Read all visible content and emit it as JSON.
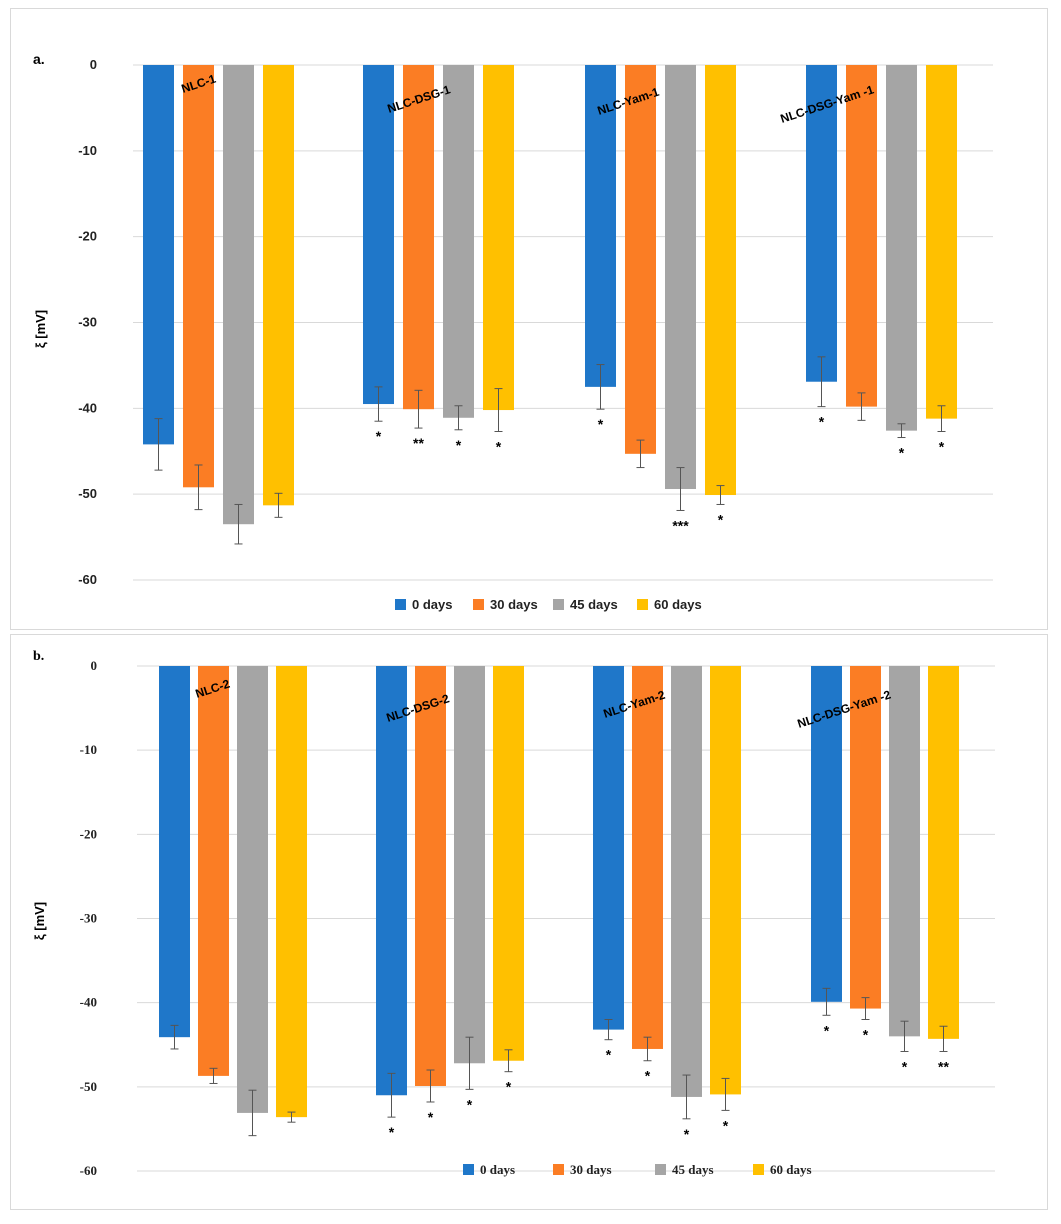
{
  "colors": {
    "0 days": "#1f77c9",
    "30 days": "#fb7d24",
    "45 days": "#a5a5a5",
    "60 days": "#ffc000",
    "grid": "#d9d9d9",
    "errorbar": "#555555"
  },
  "chart_data": [
    {
      "panel_label": "a.",
      "type": "bar",
      "ylabel": "ξ [mV]",
      "ylim": [
        -60,
        0
      ],
      "yticks": [
        0,
        -10,
        -20,
        -30,
        -40,
        -50,
        -60
      ],
      "grid": true,
      "legend_position": "bottom",
      "categories": [
        "NLC-1",
        "NLC-DSG-1",
        "NLC-Yam-1",
        "NLC-DSG-Yam -1"
      ],
      "series": [
        {
          "name": "0 days",
          "values": [
            -44.2,
            -39.5,
            -37.5,
            -36.9
          ],
          "errors": [
            3.0,
            2.0,
            2.6,
            2.9
          ],
          "significance": [
            "",
            "*",
            "*",
            "*"
          ]
        },
        {
          "name": "30 days",
          "values": [
            -49.2,
            -40.1,
            -45.3,
            -39.8
          ],
          "errors": [
            2.6,
            2.2,
            1.6,
            1.6
          ],
          "significance": [
            "",
            "**",
            "",
            ""
          ]
        },
        {
          "name": "45 days",
          "values": [
            -53.5,
            -41.1,
            -49.4,
            -42.6
          ],
          "errors": [
            2.3,
            1.4,
            2.5,
            0.8
          ],
          "significance": [
            "",
            "*",
            "***",
            "*"
          ]
        },
        {
          "name": "60 days",
          "values": [
            -51.3,
            -40.2,
            -50.1,
            -41.2
          ],
          "errors": [
            1.4,
            2.5,
            1.1,
            1.5
          ],
          "significance": [
            "",
            "*",
            "*",
            "*"
          ]
        }
      ]
    },
    {
      "panel_label": "b.",
      "type": "bar",
      "ylabel": "ξ [mV]",
      "ylim": [
        -60,
        0
      ],
      "yticks": [
        0,
        -10,
        -20,
        -30,
        -40,
        -50,
        -60
      ],
      "grid": true,
      "legend_position": "bottom",
      "categories": [
        "NLC-2",
        "NLC-DSG-2",
        "NLC-Yam-2",
        "NLC-DSG-Yam -2"
      ],
      "series": [
        {
          "name": "0 days",
          "values": [
            -44.1,
            -51.0,
            -43.2,
            -39.9
          ],
          "errors": [
            1.4,
            2.6,
            1.2,
            1.6
          ],
          "significance": [
            "",
            "*",
            "*",
            "*"
          ]
        },
        {
          "name": "30 days",
          "values": [
            -48.7,
            -49.9,
            -45.5,
            -40.7
          ],
          "errors": [
            0.9,
            1.9,
            1.4,
            1.3
          ],
          "significance": [
            "",
            "*",
            "*",
            "*"
          ]
        },
        {
          "name": "45 days",
          "values": [
            -53.1,
            -47.2,
            -51.2,
            -44.0
          ],
          "errors": [
            2.7,
            3.1,
            2.6,
            1.8
          ],
          "significance": [
            "",
            "*",
            "*",
            "*"
          ]
        },
        {
          "name": "60 days",
          "values": [
            -53.6,
            -46.9,
            -50.9,
            -44.3
          ],
          "errors": [
            0.6,
            1.3,
            1.9,
            1.5
          ],
          "significance": [
            "",
            "*",
            "*",
            "**"
          ]
        }
      ]
    }
  ]
}
